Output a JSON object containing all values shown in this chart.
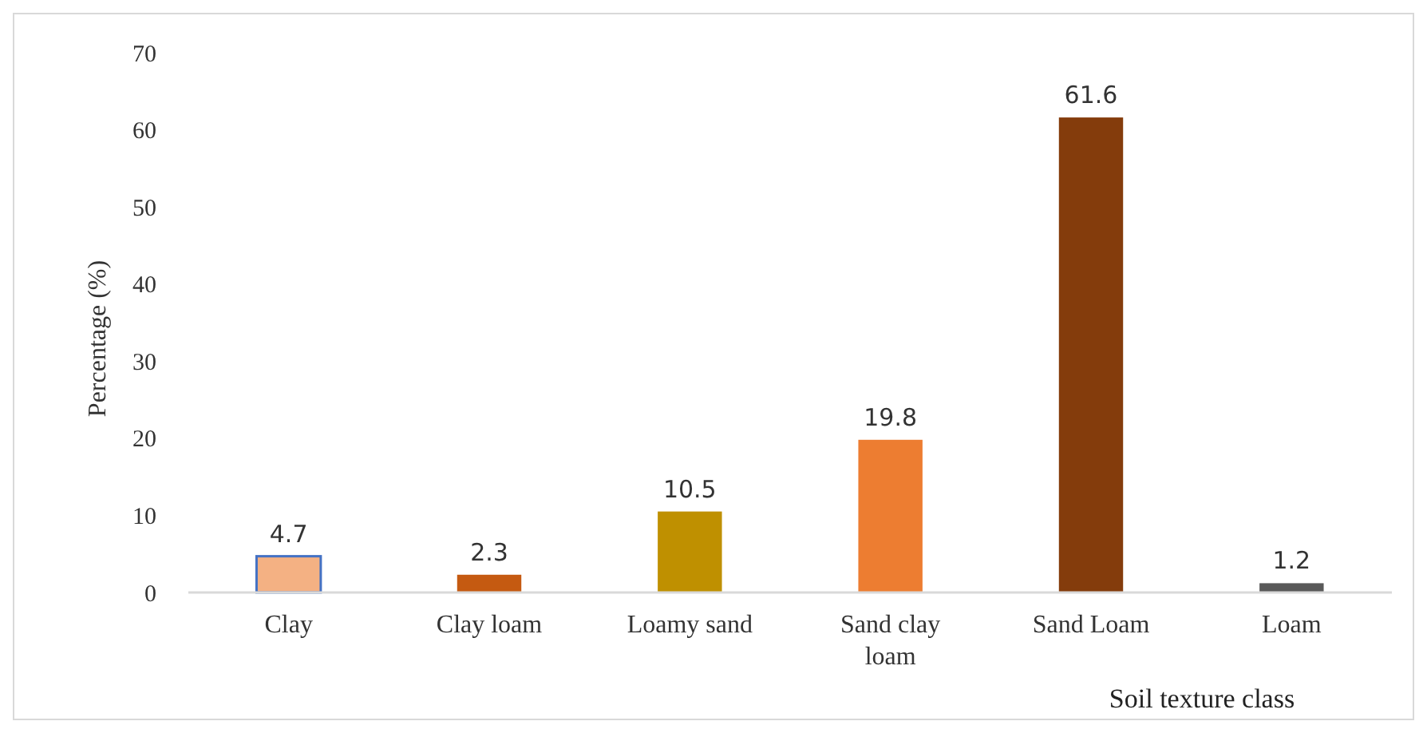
{
  "chart_data": {
    "type": "bar",
    "xlabel": "Soil texture class",
    "ylabel": "Percentage (%)",
    "categories": [
      "Clay",
      "Clay loam",
      "Loamy sand",
      "Sand clay loam",
      "Sand Loam",
      "Loam"
    ],
    "values": [
      4.7,
      2.3,
      10.5,
      19.8,
      61.6,
      1.2
    ],
    "colors": [
      "#f4b183",
      "#c55a11",
      "#bf9000",
      "#ed7d31",
      "#843c0c",
      "#595959"
    ],
    "ylim": [
      0,
      70
    ],
    "yticks": [
      0,
      10,
      20,
      30,
      40,
      50,
      60,
      70
    ],
    "grid": false,
    "data_labels": true
  }
}
